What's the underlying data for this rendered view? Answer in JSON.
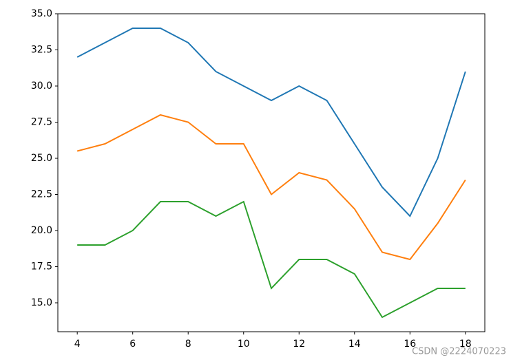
{
  "chart_data": {
    "type": "line",
    "x": [
      4,
      5,
      6,
      7,
      8,
      9,
      10,
      11,
      12,
      13,
      14,
      15,
      16,
      17,
      18
    ],
    "series": [
      {
        "color": "#1f77b4",
        "values": [
          32,
          33,
          34,
          34,
          33,
          31,
          30,
          29,
          30,
          29,
          26,
          23,
          21,
          25,
          31
        ]
      },
      {
        "color": "#ff7f0e",
        "values": [
          25.5,
          26,
          27,
          28,
          27.5,
          26,
          26,
          22.5,
          24,
          23.5,
          21.5,
          18.5,
          18,
          20.5,
          23.5
        ]
      },
      {
        "color": "#2ca02c",
        "values": [
          19,
          19,
          20,
          22,
          22,
          21,
          22,
          16,
          18,
          18,
          17,
          14,
          15,
          16,
          16
        ]
      }
    ],
    "xlim": [
      3.3,
      18.7
    ],
    "ylim": [
      13,
      35
    ],
    "xticks": [
      4,
      6,
      8,
      10,
      12,
      14,
      16,
      18
    ],
    "yticks": [
      {
        "value": 15,
        "label": "15.0"
      },
      {
        "value": 17.5,
        "label": "17.5"
      },
      {
        "value": 20,
        "label": "20.0"
      },
      {
        "value": 22.5,
        "label": "22.5"
      },
      {
        "value": 25,
        "label": "25.0"
      },
      {
        "value": 27.5,
        "label": "27.5"
      },
      {
        "value": 30,
        "label": "30.0"
      },
      {
        "value": 32.5,
        "label": "32.5"
      },
      {
        "value": 35,
        "label": "35.0"
      }
    ]
  },
  "watermark": "CSDN @2224070223"
}
